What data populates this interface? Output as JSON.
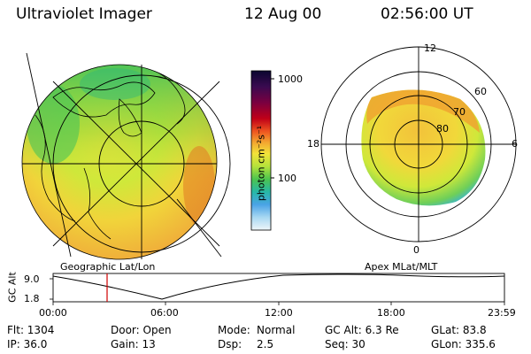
{
  "header": {
    "instrument": "Ultraviolet Imager",
    "date": "12 Aug 00",
    "time": "02:56:00 UT"
  },
  "panels": {
    "left_caption": "Geographic Lat/Lon",
    "right_caption": "Apex MLat/MLT"
  },
  "colorbar": {
    "label": "photon cm⁻²s⁻¹",
    "ticks": [
      "1000",
      "100"
    ],
    "colors": [
      "#0b0630",
      "#3a0a50",
      "#7a0040",
      "#b40018",
      "#e0301a",
      "#ee7a22",
      "#f3b233",
      "#f2e23a",
      "#cfe83a",
      "#8ad43c",
      "#3fc15a",
      "#27b8a6",
      "#4aa3e6",
      "#9fd3f3",
      "#e9f4f8"
    ]
  },
  "polar_grid": {
    "mlt_labels": [
      "12",
      "18",
      "6",
      "0"
    ],
    "mlat_labels": [
      "60",
      "70",
      "80"
    ]
  },
  "timeline": {
    "ylabel": "GC Alt",
    "yticks": [
      "9.0",
      "1.8"
    ],
    "xticks": [
      "00:00",
      "06:00",
      "12:00",
      "18:00",
      "23:59"
    ],
    "current_time": "02:56"
  },
  "info": {
    "flt": "Flt: 1304",
    "ip": "IP: 36.0",
    "door": "Door: Open",
    "gain": "Gain: 13",
    "mode_label": "Mode:",
    "mode_value": "Normal",
    "dsp_label": "Dsp:",
    "dsp_value": "2.5",
    "gc_alt": "GC Alt: 6.3 Re",
    "seq": "Seq: 30",
    "glat": "GLat:  83.8",
    "glon": "GLon: 335.6"
  }
}
